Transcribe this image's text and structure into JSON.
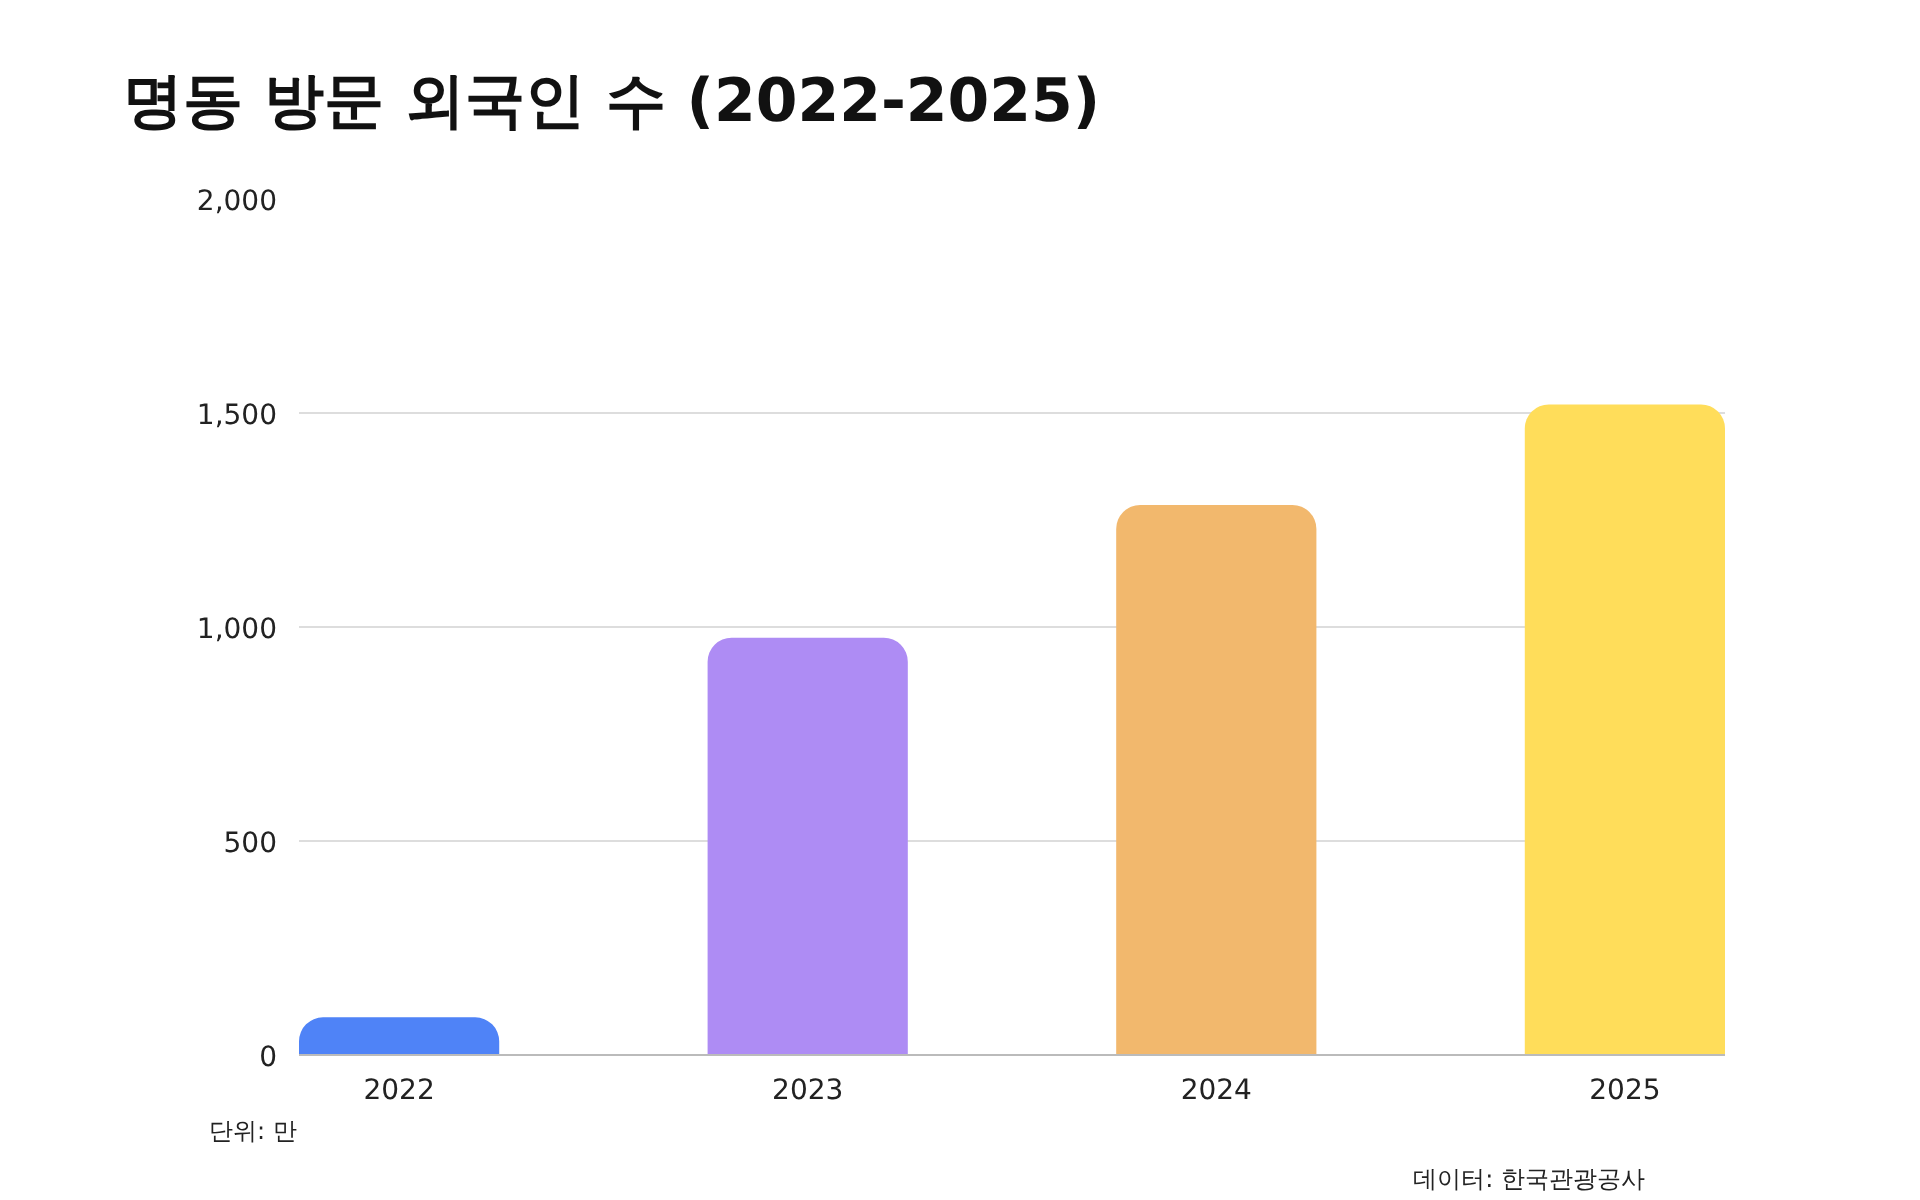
{
  "chart_data": {
    "type": "bar",
    "title": "명동 방문 외국인 수 (2022-2025)",
    "categories": [
      "2022",
      "2023",
      "2024",
      "2025"
    ],
    "values": [
      88,
      975,
      1285,
      1520
    ],
    "colors": [
      "#4f83f7",
      "#ae8cf4",
      "#f2b86d",
      "#ffdd5a"
    ],
    "ylim": [
      0,
      2000
    ],
    "yticks": [
      0,
      {
        "value": 500,
        "label": "500"
      },
      {
        "value": 1000,
        "label": "1,000"
      },
      {
        "value": 1500,
        "label": "1,500"
      },
      {
        "value": 2000,
        "label": "2,000"
      }
    ],
    "grid": "y",
    "annotations": [
      "단위: 만",
      "데이터: 한국관광공사"
    ]
  }
}
